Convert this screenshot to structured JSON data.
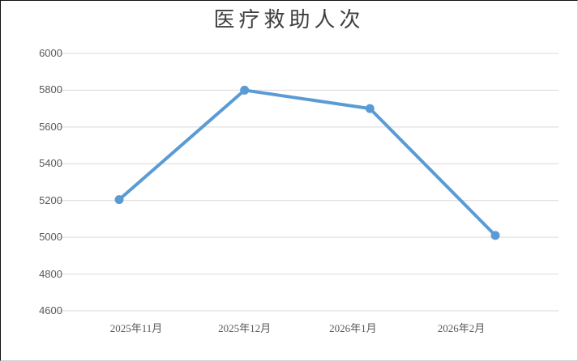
{
  "title": "医疗救助人次",
  "chart_data": {
    "type": "line",
    "title": "医疗救助人次",
    "categories": [
      "2025年11月",
      "2025年12月",
      "2026年1月",
      "2026年2月"
    ],
    "series": [
      {
        "name": "医疗救助人次",
        "values": [
          5205,
          5800,
          5700,
          5010
        ]
      }
    ],
    "ylim": [
      4600,
      6000
    ],
    "ytick_step": 200,
    "yticks": [
      6000,
      5800,
      5600,
      5400,
      5200,
      5000,
      4800,
      4600
    ],
    "grid": true,
    "legend_visible": false,
    "colors": {
      "line": "#5B9BD5",
      "marker": "#5B9BD5",
      "gridline": "#D9D9D9",
      "tick_label": "#595959",
      "title": "#3F3F3F",
      "background": "#FFFFFF"
    }
  }
}
